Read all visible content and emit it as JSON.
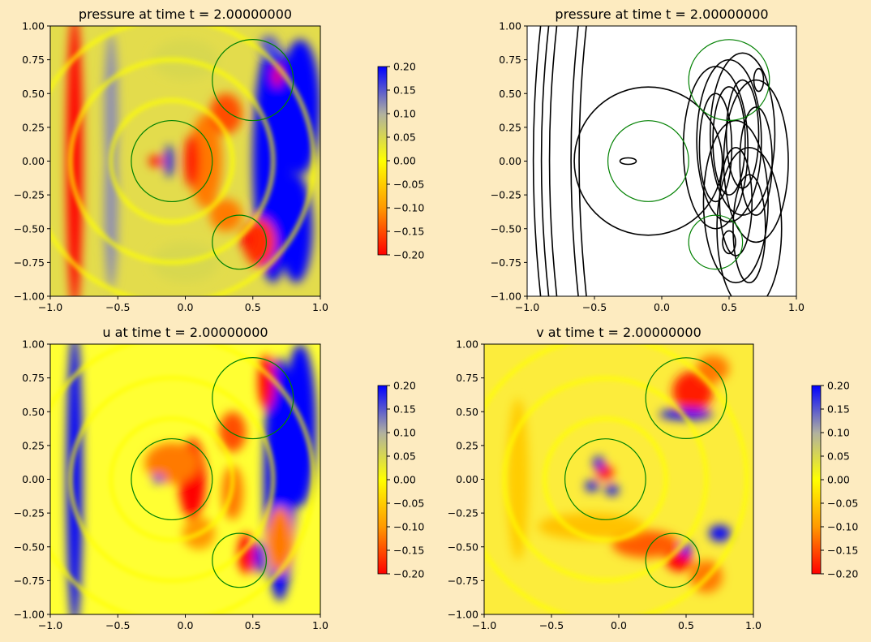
{
  "figure": {
    "background": "#FDEBC0"
  },
  "colormap": {
    "name": "red-orange-yellow-gray-blue",
    "stops": [
      {
        "v": -0.2,
        "color": "#ff0000"
      },
      {
        "v": -0.1,
        "color": "#ff9900"
      },
      {
        "v": 0.0,
        "color": "#ffff00"
      },
      {
        "v": 0.1,
        "color": "#b0b0a0"
      },
      {
        "v": 0.2,
        "color": "#0000ff"
      }
    ]
  },
  "chart_data": [
    {
      "type": "heatmap",
      "title": "pressure at time t =      2.00000000",
      "xlim": [
        -1.0,
        1.0
      ],
      "ylim": [
        -1.0,
        1.0
      ],
      "xticks": [
        "−1.0",
        "−0.5",
        "0.0",
        "0.5",
        "1.0"
      ],
      "yticks": [
        "1.00",
        "0.75",
        "0.50",
        "0.25",
        "0.00",
        "−0.25",
        "−0.50",
        "−0.75",
        "−1.00"
      ],
      "colorbar": {
        "range": [
          -0.2,
          0.2
        ],
        "ticks": [
          "0.20",
          "0.15",
          "0.10",
          "0.05",
          "0.00",
          "−0.05",
          "−0.10",
          "−0.15",
          "−0.20"
        ]
      },
      "circles": [
        {
          "cx": -0.1,
          "cy": 0.0,
          "r": 0.3
        },
        {
          "cx": 0.5,
          "cy": 0.6,
          "r": 0.3
        },
        {
          "cx": 0.4,
          "cy": -0.6,
          "r": 0.2
        }
      ],
      "circle_color": "#008000"
    },
    {
      "type": "contour",
      "title": "pressure at time t =      2.00000000",
      "xlim": [
        -1.0,
        1.0
      ],
      "ylim": [
        -1.0,
        1.0
      ],
      "xticks": [
        "−1.0",
        "−0.5",
        "0.0",
        "0.5",
        "1.0"
      ],
      "yticks": [
        "1.00",
        "0.75",
        "0.50",
        "0.25",
        "0.00",
        "−0.25",
        "−0.50",
        "−0.75",
        "−1.00"
      ],
      "circles": [
        {
          "cx": -0.1,
          "cy": 0.0,
          "r": 0.3
        },
        {
          "cx": 0.5,
          "cy": 0.6,
          "r": 0.3
        },
        {
          "cx": 0.4,
          "cy": -0.6,
          "r": 0.2
        }
      ],
      "circle_color": "#008000"
    },
    {
      "type": "heatmap",
      "title": "u at time t =      2.00000000",
      "xlim": [
        -1.0,
        1.0
      ],
      "ylim": [
        -1.0,
        1.0
      ],
      "xticks": [
        "−1.0",
        "−0.5",
        "0.0",
        "0.5",
        "1.0"
      ],
      "yticks": [
        "1.00",
        "0.75",
        "0.50",
        "0.25",
        "0.00",
        "−0.25",
        "−0.50",
        "−0.75",
        "−1.00"
      ],
      "colorbar": {
        "range": [
          -0.2,
          0.2
        ],
        "ticks": [
          "0.20",
          "0.15",
          "0.10",
          "0.05",
          "0.00",
          "−0.05",
          "−0.10",
          "−0.15",
          "−0.20"
        ]
      },
      "circles": [
        {
          "cx": -0.1,
          "cy": 0.0,
          "r": 0.3
        },
        {
          "cx": 0.5,
          "cy": 0.6,
          "r": 0.3
        },
        {
          "cx": 0.4,
          "cy": -0.6,
          "r": 0.2
        }
      ],
      "circle_color": "#008000"
    },
    {
      "type": "heatmap",
      "title": "v at time t =      2.00000000",
      "xlim": [
        -1.0,
        1.0
      ],
      "ylim": [
        -1.0,
        1.0
      ],
      "xticks": [
        "−1.0",
        "−0.5",
        "0.0",
        "0.5",
        "1.0"
      ],
      "yticks": [
        "1.00",
        "0.75",
        "0.50",
        "0.25",
        "0.00",
        "−0.25",
        "−0.50",
        "−0.75",
        "−1.00"
      ],
      "colorbar": {
        "range": [
          -0.2,
          0.2
        ],
        "ticks": [
          "0.20",
          "0.15",
          "0.10",
          "0.05",
          "0.00",
          "−0.05",
          "−0.10",
          "−0.15",
          "−0.20"
        ]
      },
      "circles": [
        {
          "cx": -0.1,
          "cy": 0.0,
          "r": 0.3
        },
        {
          "cx": 0.5,
          "cy": 0.6,
          "r": 0.3
        },
        {
          "cx": 0.4,
          "cy": -0.6,
          "r": 0.2
        }
      ],
      "circle_color": "#008000"
    }
  ]
}
